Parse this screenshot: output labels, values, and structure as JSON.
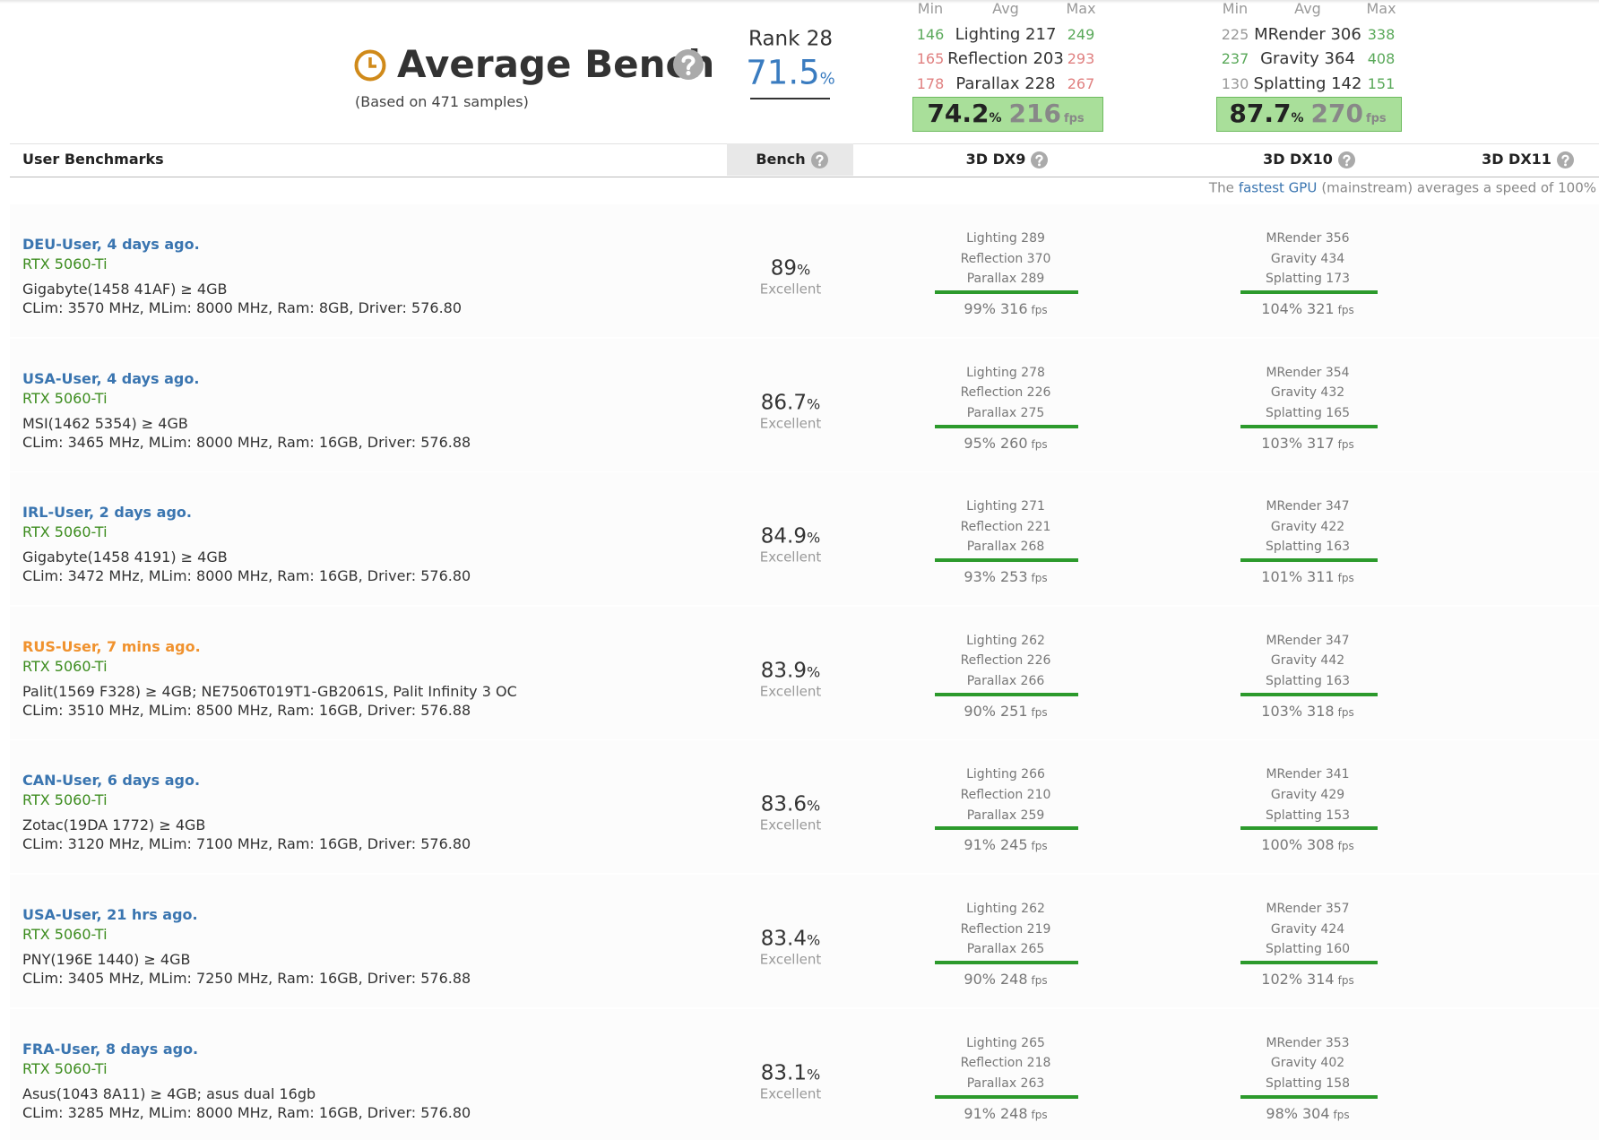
{
  "header": {
    "title": "Average Bench",
    "samples": "(Based on 471 samples)",
    "rank": "Rank 28",
    "score": "71.5",
    "score_unit": "%"
  },
  "summary": [
    {
      "columns": [
        "Min",
        "Avg",
        "Max"
      ],
      "rows": [
        {
          "min": "146",
          "avg": "Lighting 217",
          "max": "249",
          "min_color": "#5aa95a",
          "max_color": "#5aa95a"
        },
        {
          "min": "165",
          "avg": "Reflection 203",
          "max": "293",
          "min_color": "#e08080",
          "max_color": "#e08080"
        },
        {
          "min": "178",
          "avg": "Parallax 228",
          "max": "267",
          "min_color": "#e08080",
          "max_color": "#e08080"
        }
      ],
      "pct": "74.2",
      "pct_unit": "%",
      "fps": "216",
      "fps_unit": "fps"
    },
    {
      "columns": [
        "Min",
        "Avg",
        "Max"
      ],
      "rows": [
        {
          "min": "225",
          "avg": "MRender 306",
          "max": "338",
          "min_color": "#999999",
          "max_color": "#5aa95a"
        },
        {
          "min": "237",
          "avg": "Gravity 364",
          "max": "408",
          "min_color": "#5aa95a",
          "max_color": "#5aa95a"
        },
        {
          "min": "130",
          "avg": "Splatting 142",
          "max": "151",
          "min_color": "#999999",
          "max_color": "#5aa95a"
        }
      ],
      "pct": "87.7",
      "pct_unit": "%",
      "fps": "270",
      "fps_unit": "fps"
    }
  ],
  "table": {
    "headers": [
      "User Benchmarks",
      "Bench",
      "3D DX9",
      "3D DX10",
      "3D DX11"
    ],
    "note": {
      "before": "The",
      "link": "fastest GPU",
      "after": "(mainstream) averages a speed of 100%"
    },
    "rows": [
      {
        "user": "DEU-User, 4 days ago.",
        "user_color": "#3a75b0",
        "gpu": "RTX 5060-Ti",
        "model": "Gigabyte(1458 41AF) ≥ 4GB",
        "specs": "CLim: 3570 MHz, MLim: 8000 MHz, Ram: 8GB, Driver: 576.80",
        "bench": "89",
        "bench_unit": "%",
        "rating": "Excellent",
        "dx9": {
          "lines": [
            "Lighting 289",
            "Reflection 370",
            "Parallax 289"
          ],
          "pct": "99%",
          "fps": "316",
          "fps_unit": "fps"
        },
        "dx10": {
          "lines": [
            "MRender 356",
            "Gravity 434",
            "Splatting 173"
          ],
          "pct": "104%",
          "fps": "321",
          "fps_unit": "fps"
        }
      },
      {
        "user": "USA-User, 4 days ago.",
        "user_color": "#3a75b0",
        "gpu": "RTX 5060-Ti",
        "model": "MSI(1462 5354) ≥ 4GB",
        "specs": "CLim: 3465 MHz, MLim: 8000 MHz, Ram: 16GB, Driver: 576.88",
        "bench": "86.7",
        "bench_unit": "%",
        "rating": "Excellent",
        "dx9": {
          "lines": [
            "Lighting 278",
            "Reflection 226",
            "Parallax 275"
          ],
          "pct": "95%",
          "fps": "260",
          "fps_unit": "fps"
        },
        "dx10": {
          "lines": [
            "MRender 354",
            "Gravity 432",
            "Splatting 165"
          ],
          "pct": "103%",
          "fps": "317",
          "fps_unit": "fps"
        }
      },
      {
        "user": "IRL-User, 2 days ago.",
        "user_color": "#3a75b0",
        "gpu": "RTX 5060-Ti",
        "model": "Gigabyte(1458 4191) ≥ 4GB",
        "specs": "CLim: 3472 MHz, MLim: 8000 MHz, Ram: 16GB, Driver: 576.80",
        "bench": "84.9",
        "bench_unit": "%",
        "rating": "Excellent",
        "dx9": {
          "lines": [
            "Lighting 271",
            "Reflection 221",
            "Parallax 268"
          ],
          "pct": "93%",
          "fps": "253",
          "fps_unit": "fps"
        },
        "dx10": {
          "lines": [
            "MRender 347",
            "Gravity 422",
            "Splatting 163"
          ],
          "pct": "101%",
          "fps": "311",
          "fps_unit": "fps"
        }
      },
      {
        "user": "RUS-User, 7 mins ago.",
        "user_color": "#f0922e",
        "gpu": "RTX 5060-Ti",
        "model": "Palit(1569 F328) ≥ 4GB; NE7506T019T1-GB2061S, Palit Infinity 3 OC",
        "specs": "CLim: 3510 MHz, MLim: 8500 MHz, Ram: 16GB, Driver: 576.88",
        "bench": "83.9",
        "bench_unit": "%",
        "rating": "Excellent",
        "dx9": {
          "lines": [
            "Lighting 262",
            "Reflection 226",
            "Parallax 266"
          ],
          "pct": "90%",
          "fps": "251",
          "fps_unit": "fps"
        },
        "dx10": {
          "lines": [
            "MRender 347",
            "Gravity 442",
            "Splatting 163"
          ],
          "pct": "103%",
          "fps": "318",
          "fps_unit": "fps"
        }
      },
      {
        "user": "CAN-User, 6 days ago.",
        "user_color": "#3a75b0",
        "gpu": "RTX 5060-Ti",
        "model": "Zotac(19DA 1772) ≥ 4GB",
        "specs": "CLim: 3120 MHz, MLim: 7100 MHz, Ram: 16GB, Driver: 576.80",
        "bench": "83.6",
        "bench_unit": "%",
        "rating": "Excellent",
        "dx9": {
          "lines": [
            "Lighting 266",
            "Reflection 210",
            "Parallax 259"
          ],
          "pct": "91%",
          "fps": "245",
          "fps_unit": "fps"
        },
        "dx10": {
          "lines": [
            "MRender 341",
            "Gravity 429",
            "Splatting 153"
          ],
          "pct": "100%",
          "fps": "308",
          "fps_unit": "fps"
        }
      },
      {
        "user": "USA-User, 21 hrs ago.",
        "user_color": "#3a75b0",
        "gpu": "RTX 5060-Ti",
        "model": "PNY(196E 1440) ≥ 4GB",
        "specs": "CLim: 3405 MHz, MLim: 7250 MHz, Ram: 16GB, Driver: 576.88",
        "bench": "83.4",
        "bench_unit": "%",
        "rating": "Excellent",
        "dx9": {
          "lines": [
            "Lighting 262",
            "Reflection 219",
            "Parallax 265"
          ],
          "pct": "90%",
          "fps": "248",
          "fps_unit": "fps"
        },
        "dx10": {
          "lines": [
            "MRender 357",
            "Gravity 424",
            "Splatting 160"
          ],
          "pct": "102%",
          "fps": "314",
          "fps_unit": "fps"
        }
      },
      {
        "user": "FRA-User, 8 days ago.",
        "user_color": "#3a75b0",
        "gpu": "RTX 5060-Ti",
        "model": "Asus(1043 8A11) ≥ 4GB; asus dual 16gb",
        "specs": "CLim: 3285 MHz, MLim: 8000 MHz, Ram: 16GB, Driver: 576.80",
        "bench": "83.1",
        "bench_unit": "%",
        "rating": "Excellent",
        "dx9": {
          "lines": [
            "Lighting 265",
            "Reflection 218",
            "Parallax 263"
          ],
          "pct": "91%",
          "fps": "248",
          "fps_unit": "fps"
        },
        "dx10": {
          "lines": [
            "MRender 353",
            "Gravity 402",
            "Splatting 158"
          ],
          "pct": "98%",
          "fps": "304",
          "fps_unit": "fps"
        }
      }
    ]
  }
}
